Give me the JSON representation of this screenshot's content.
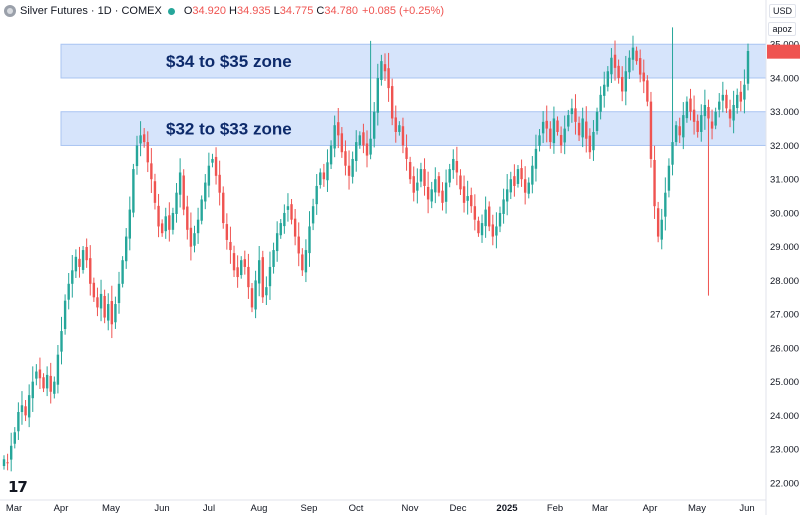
{
  "header": {
    "title": "Silver Futures · 1D · COMEX",
    "open_label": "O",
    "open": "34.920",
    "high_label": "H",
    "high": "34.935",
    "low_label": "L",
    "low": "34.775",
    "close_label": "C",
    "close": "34.780",
    "change": "+0.085 (+0.25%)"
  },
  "controls": {
    "currency": "USD",
    "scale": "apoz"
  },
  "colors": {
    "up": "#26a69a",
    "down": "#ef5350",
    "zone_fill": "#d6e4fb",
    "zone_border": "#a9c4f2",
    "accent": "#2962ff"
  },
  "logo_icon": "tradingview-logo-icon",
  "chart_data": {
    "type": "candlestick",
    "ylim": [
      21.7,
      35.6
    ],
    "y_ticks": [
      "22.000",
      "23.000",
      "24.000",
      "25.000",
      "26.000",
      "27.000",
      "28.000",
      "29.000",
      "30.000",
      "31.000",
      "32.000",
      "33.000",
      "34.000",
      "35.000"
    ],
    "x_ticks": [
      "Mar",
      "Apr",
      "May",
      "Jun",
      "Jul",
      "Aug",
      "Sep",
      "Oct",
      "Nov",
      "Dec",
      "2025",
      "Feb",
      "Mar",
      "Apr",
      "May",
      "Jun"
    ],
    "last_price": "34.780",
    "zones": [
      {
        "label": "$34 to $35 zone",
        "from": 34.0,
        "to": 35.0
      },
      {
        "label": "$32 to $33 zone",
        "from": 32.0,
        "to": 33.0
      }
    ],
    "closes": [
      22.7,
      22.6,
      23.1,
      23.5,
      24.1,
      24.3,
      24.0,
      24.6,
      25.0,
      25.3,
      25.1,
      24.8,
      25.2,
      24.7,
      25.0,
      25.8,
      26.5,
      27.4,
      27.9,
      28.3,
      28.7,
      28.4,
      28.9,
      28.6,
      27.9,
      27.5,
      27.2,
      27.6,
      26.9,
      27.3,
      26.7,
      27.3,
      27.9,
      28.6,
      29.3,
      30.1,
      31.3,
      32.0,
      32.3,
      32.1,
      31.5,
      31.0,
      30.3,
      29.6,
      29.4,
      29.9,
      29.5,
      30.0,
      30.6,
      31.2,
      30.1,
      29.5,
      29.0,
      29.4,
      29.8,
      30.4,
      30.9,
      31.4,
      31.6,
      31.1,
      30.6,
      29.7,
      29.2,
      28.9,
      28.3,
      28.1,
      28.6,
      28.4,
      27.8,
      27.2,
      28.0,
      28.6,
      27.5,
      27.8,
      28.4,
      28.9,
      29.4,
      29.7,
      30.0,
      30.2,
      29.8,
      29.3,
      28.8,
      28.3,
      28.9,
      29.6,
      30.2,
      30.8,
      31.2,
      31.0,
      31.5,
      32.0,
      32.6,
      32.3,
      31.8,
      31.4,
      31.1,
      31.6,
      32.1,
      32.3,
      32.0,
      31.7,
      32.2,
      33.0,
      34.0,
      34.5,
      34.2,
      33.7,
      32.8,
      32.4,
      32.6,
      32.0,
      31.6,
      31.0,
      30.6,
      30.9,
      31.3,
      30.8,
      30.4,
      30.7,
      31.0,
      30.6,
      30.3,
      30.9,
      31.3,
      31.6,
      31.2,
      30.7,
      30.3,
      30.5,
      30.2,
      29.8,
      29.4,
      29.7,
      30.1,
      29.6,
      29.3,
      29.6,
      30.0,
      30.4,
      30.7,
      31.0,
      30.8,
      31.3,
      31.0,
      30.6,
      30.9,
      31.4,
      31.9,
      32.3,
      32.7,
      32.5,
      32.1,
      32.8,
      32.4,
      32.0,
      32.5,
      32.9,
      33.1,
      32.7,
      32.3,
      32.8,
      32.2,
      31.8,
      32.4,
      33.0,
      33.5,
      33.8,
      34.2,
      34.6,
      34.3,
      34.0,
      33.6,
      34.2,
      34.6,
      34.9,
      34.5,
      34.1,
      33.9,
      33.3,
      31.6,
      30.2,
      29.3,
      29.8,
      30.6,
      31.4,
      32.1,
      32.6,
      32.3,
      32.9,
      33.3,
      33.0,
      32.7,
      32.4,
      32.9,
      33.2,
      32.8,
      32.5,
      33.0,
      33.3,
      33.5,
      33.1,
      32.8,
      33.2,
      33.5,
      33.3,
      33.8,
      34.8
    ]
  }
}
